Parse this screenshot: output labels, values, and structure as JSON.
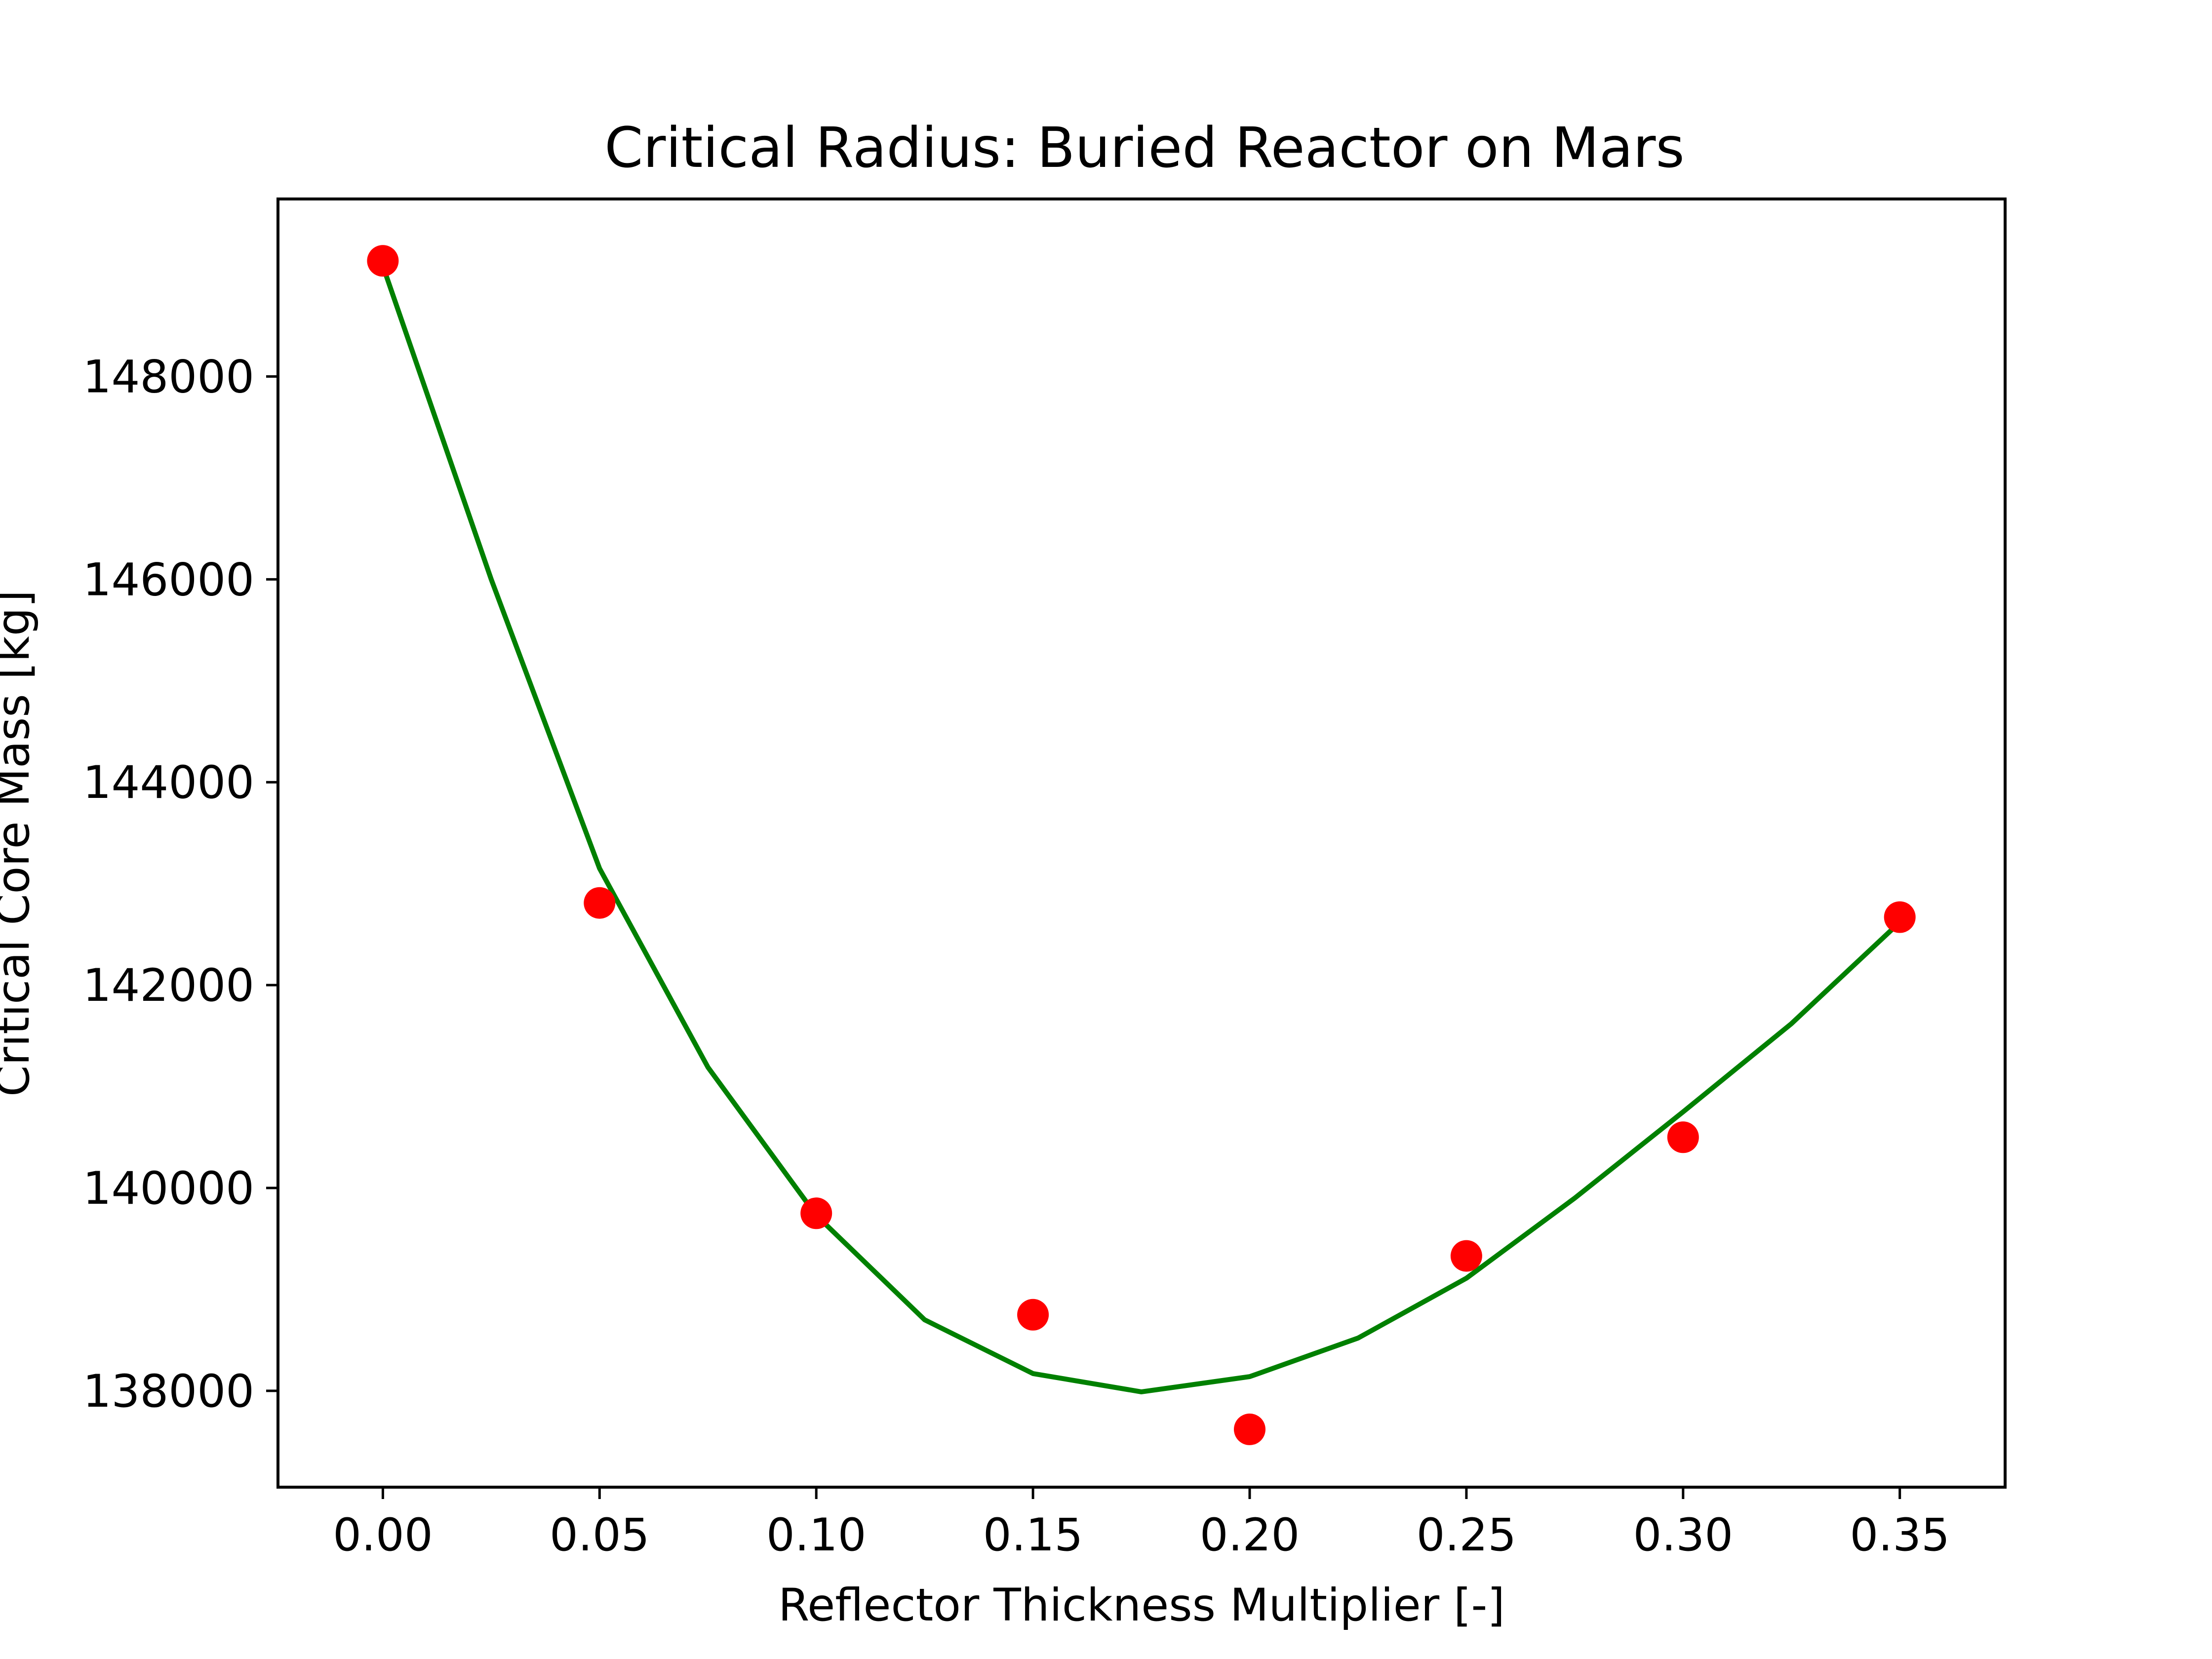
{
  "chart_data": {
    "type": "scatter",
    "title": "Critical Radius: Buried Reactor on Mars",
    "xlabel": "Reflector Thickness Multiplier [-]",
    "ylabel": "Critical Core Mass [kg]",
    "xlim": [
      -0.0242,
      0.3743
    ],
    "ylim": [
      137050,
      149750
    ],
    "grid": false,
    "xticks": [
      "0.00",
      "0.05",
      "0.10",
      "0.15",
      "0.20",
      "0.25",
      "0.30",
      "0.35"
    ],
    "yticks": [
      "138000",
      "140000",
      "142000",
      "144000",
      "146000",
      "148000"
    ],
    "series": [
      {
        "style": "markers",
        "color": "#ff0000",
        "x": [
          0.0,
          0.05,
          0.1,
          0.15,
          0.2,
          0.25,
          0.3,
          0.35
        ],
        "y": [
          149140,
          142810,
          139750,
          138750,
          137620,
          139330,
          140500,
          142670
        ]
      },
      {
        "style": "line",
        "color": "#008000",
        "x": [
          0.0,
          0.025,
          0.05,
          0.075,
          0.1,
          0.125,
          0.15,
          0.175,
          0.2,
          0.225,
          0.25,
          0.275,
          0.3,
          0.325,
          0.35
        ],
        "y": [
          149090,
          146000,
          143150,
          141190,
          139730,
          138700,
          138170,
          137990,
          138140,
          138520,
          139110,
          139900,
          140750,
          141620,
          142620
        ]
      }
    ]
  }
}
